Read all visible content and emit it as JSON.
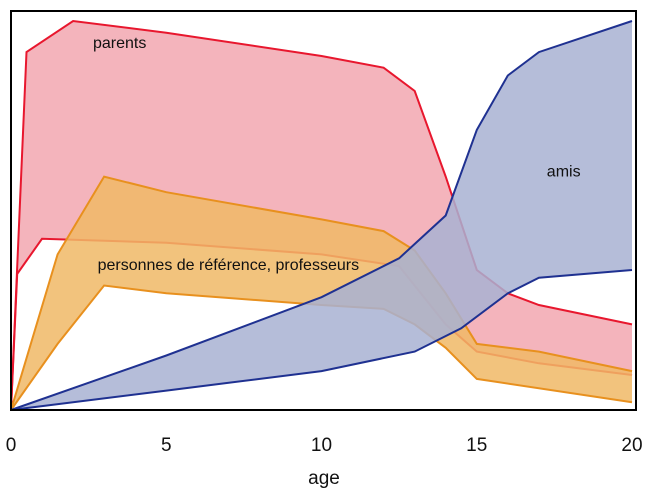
{
  "chart_data": {
    "type": "area",
    "xlabel": "age",
    "ylabel": "",
    "xlim": [
      0,
      20
    ],
    "ylim": [
      0,
      1
    ],
    "xticks": [
      "0",
      "5",
      "10",
      "15",
      "20"
    ],
    "grid": false,
    "legend": "none",
    "series": [
      {
        "name": "parents",
        "color": "#e8172e",
        "fill": "#f2a7b0",
        "upper": [
          [
            0,
            0
          ],
          [
            0.5,
            0.92
          ],
          [
            2,
            1.0
          ],
          [
            5,
            0.97
          ],
          [
            10,
            0.91
          ],
          [
            12,
            0.88
          ],
          [
            13,
            0.82
          ],
          [
            14,
            0.6
          ],
          [
            15,
            0.36
          ],
          [
            16,
            0.3
          ],
          [
            17,
            0.27
          ],
          [
            20,
            0.22
          ]
        ],
        "lower": [
          [
            0,
            0
          ],
          [
            0.2,
            0.35
          ],
          [
            1,
            0.44
          ],
          [
            5,
            0.43
          ],
          [
            10,
            0.4
          ],
          [
            12.5,
            0.37
          ],
          [
            14,
            0.22
          ],
          [
            15,
            0.15
          ],
          [
            17,
            0.12
          ],
          [
            20,
            0.09
          ]
        ]
      },
      {
        "name": "personnes de référence, professeurs",
        "color": "#e8901e",
        "fill": "#f0b866",
        "upper": [
          [
            0,
            0
          ],
          [
            1.5,
            0.4
          ],
          [
            3,
            0.6
          ],
          [
            5,
            0.56
          ],
          [
            10,
            0.49
          ],
          [
            12,
            0.46
          ],
          [
            13,
            0.41
          ],
          [
            14,
            0.3
          ],
          [
            15,
            0.17
          ],
          [
            17,
            0.15
          ],
          [
            20,
            0.1
          ]
        ],
        "lower": [
          [
            0,
            0
          ],
          [
            1.5,
            0.17
          ],
          [
            3,
            0.32
          ],
          [
            5,
            0.3
          ],
          [
            10,
            0.27
          ],
          [
            12,
            0.26
          ],
          [
            13,
            0.22
          ],
          [
            14,
            0.16
          ],
          [
            15,
            0.08
          ],
          [
            20,
            0.02
          ]
        ]
      },
      {
        "name": "amis",
        "color": "#1f3191",
        "fill": "#a8b2d2",
        "upper": [
          [
            0,
            0
          ],
          [
            5,
            0.14
          ],
          [
            10,
            0.29
          ],
          [
            12.5,
            0.39
          ],
          [
            14,
            0.5
          ],
          [
            15,
            0.72
          ],
          [
            16,
            0.86
          ],
          [
            17,
            0.92
          ],
          [
            20,
            1.0
          ]
        ],
        "lower": [
          [
            0,
            0
          ],
          [
            5,
            0.05
          ],
          [
            10,
            0.1
          ],
          [
            13,
            0.15
          ],
          [
            14.5,
            0.21
          ],
          [
            16,
            0.3
          ],
          [
            17,
            0.34
          ],
          [
            20,
            0.36
          ]
        ]
      }
    ],
    "labels": [
      {
        "text": "parents",
        "x": 3.5,
        "y": 0.93
      },
      {
        "text": "amis",
        "x": 17.8,
        "y": 0.6
      },
      {
        "text": "personnes de référence, professeurs",
        "x": 7.0,
        "y": 0.36
      }
    ]
  }
}
